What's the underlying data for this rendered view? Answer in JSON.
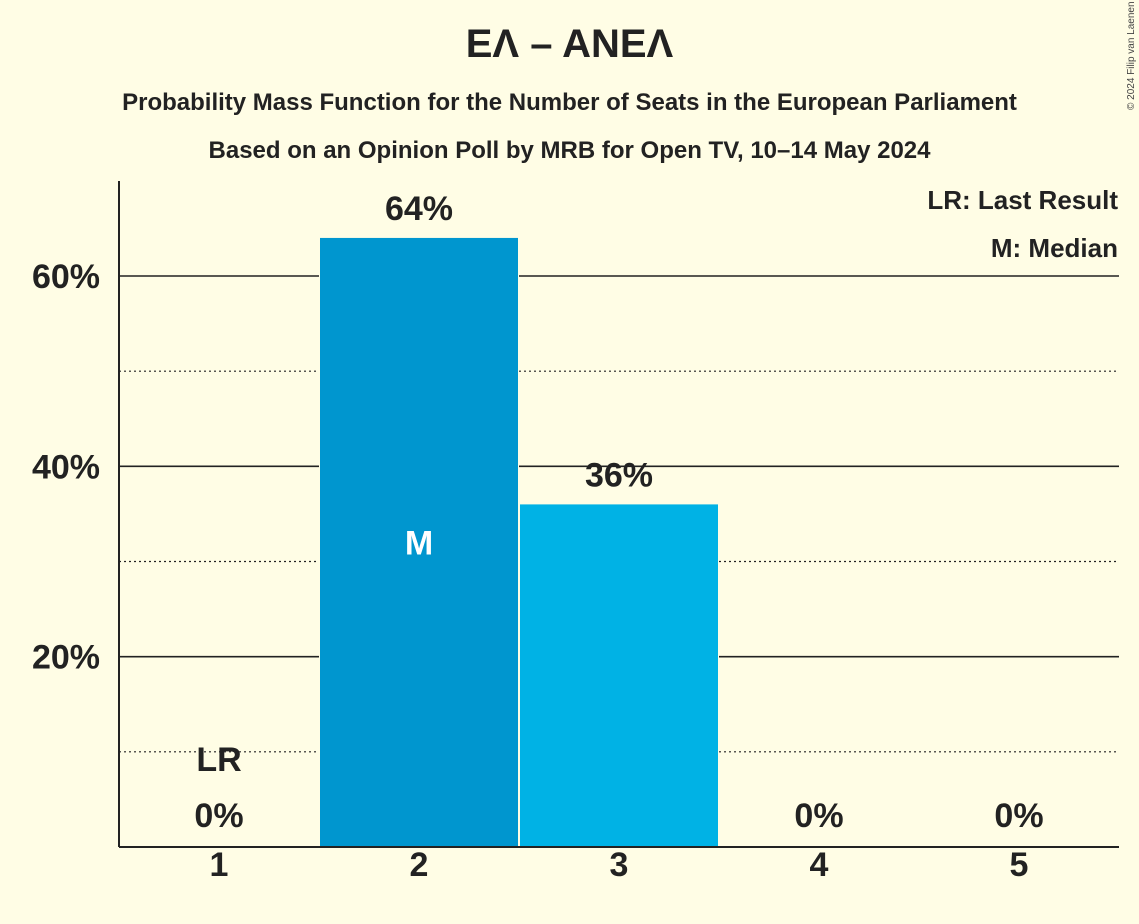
{
  "title": "ΕΛ – ΑΝΕΛ",
  "subtitle": "Probability Mass Function for the Number of Seats in the European Parliament",
  "subtitle2": "Based on an Opinion Poll by MRB for Open TV, 10–14 May 2024",
  "copyright": "© 2024 Filip van Laenen",
  "legend": {
    "last_result": "LR: Last Result",
    "median": "M: Median"
  },
  "colors": {
    "background": "#FFFDE5",
    "median_bar": "#0096CF",
    "bar": "#00B2E5"
  },
  "chart_data": {
    "type": "bar",
    "categories": [
      "1",
      "2",
      "3",
      "4",
      "5"
    ],
    "values": [
      0,
      64,
      36,
      0,
      0
    ],
    "value_labels": [
      "0%",
      "64%",
      "36%",
      "0%",
      "0%"
    ],
    "ylim": [
      0,
      70
    ],
    "yticks": [
      20,
      40,
      60
    ],
    "ytick_labels": [
      "20%",
      "40%",
      "60%"
    ],
    "minor_gridlines": [
      10,
      30,
      50
    ],
    "median_index": 1,
    "median_marker": "M",
    "last_result_index": 0,
    "last_result_marker": "LR",
    "grid": true,
    "legend_position": "top-right"
  }
}
